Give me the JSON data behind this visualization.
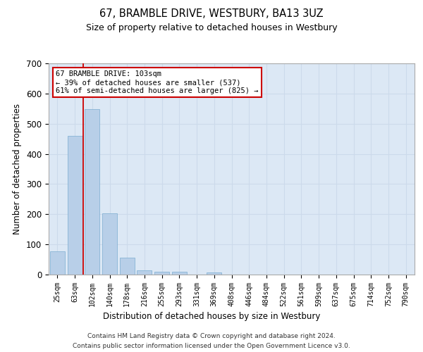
{
  "title": "67, BRAMBLE DRIVE, WESTBURY, BA13 3UZ",
  "subtitle": "Size of property relative to detached houses in Westbury",
  "xlabel": "Distribution of detached houses by size in Westbury",
  "ylabel": "Number of detached properties",
  "bar_color": "#b8cfe8",
  "bar_edge_color": "#7aacd0",
  "grid_color": "#ccdaeb",
  "bg_color": "#dce8f5",
  "categories": [
    "25sqm",
    "63sqm",
    "102sqm",
    "140sqm",
    "178sqm",
    "216sqm",
    "255sqm",
    "293sqm",
    "331sqm",
    "369sqm",
    "408sqm",
    "446sqm",
    "484sqm",
    "522sqm",
    "561sqm",
    "599sqm",
    "637sqm",
    "675sqm",
    "714sqm",
    "752sqm",
    "790sqm"
  ],
  "values": [
    78,
    460,
    548,
    203,
    57,
    14,
    10,
    10,
    0,
    8,
    0,
    0,
    0,
    0,
    0,
    0,
    0,
    0,
    0,
    0,
    0
  ],
  "ylim": [
    0,
    700
  ],
  "yticks": [
    0,
    100,
    200,
    300,
    400,
    500,
    600,
    700
  ],
  "annotation_text": "67 BRAMBLE DRIVE: 103sqm\n← 39% of detached houses are smaller (537)\n61% of semi-detached houses are larger (825) →",
  "annotation_box_color": "#ffffff",
  "annotation_box_edge": "#cc0000",
  "property_line_color": "#cc0000",
  "footer_line1": "Contains HM Land Registry data © Crown copyright and database right 2024.",
  "footer_line2": "Contains public sector information licensed under the Open Government Licence v3.0."
}
